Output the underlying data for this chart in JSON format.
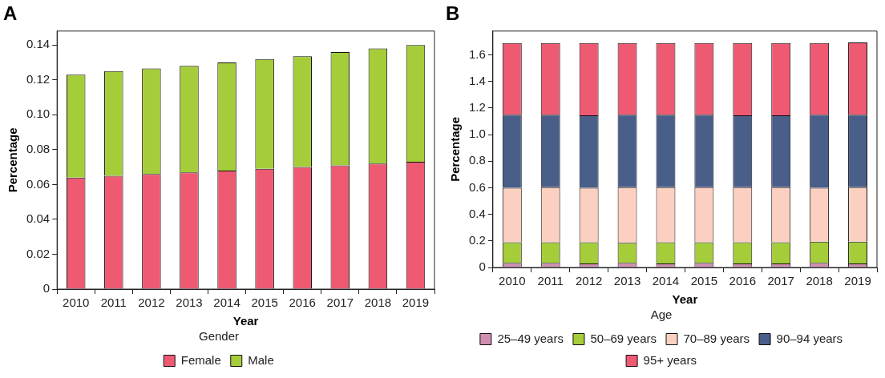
{
  "chart_data": [
    {
      "type": "bar",
      "title": "A",
      "xlabel": "Year",
      "ylabel": "Percentage",
      "legend_title": "Gender",
      "legend": "bottom",
      "stacked": true,
      "grid": false,
      "categories": [
        "2010",
        "2011",
        "2012",
        "2013",
        "2014",
        "2015",
        "2016",
        "2017",
        "2018",
        "2019"
      ],
      "ylim": [
        0,
        0.148
      ],
      "yticks": [
        0,
        0.02,
        {
          "value": 0.04,
          "label": "0.04"
        },
        {
          "value": 0.06,
          "label": "0.06"
        },
        {
          "value": 0.08,
          "label": "0.08"
        },
        {
          "value": 0.1,
          "label": "0.10"
        },
        {
          "value": 0.12,
          "label": "0.12"
        },
        {
          "value": 0.14,
          "label": "0.14"
        }
      ],
      "series": [
        {
          "name": "Female",
          "color": "#ef5a73",
          "values": [
            0.064,
            0.065,
            0.066,
            0.067,
            0.068,
            0.069,
            0.07,
            0.071,
            0.072,
            0.073
          ]
        },
        {
          "name": "Male",
          "color": "#a5cd39",
          "values": [
            0.059,
            0.06,
            0.0605,
            0.061,
            0.062,
            0.063,
            0.0635,
            0.065,
            0.066,
            0.067
          ]
        }
      ]
    },
    {
      "type": "bar",
      "title": "B",
      "xlabel": "Year",
      "ylabel": "Percentage",
      "legend_title": "Age",
      "legend": "bottom",
      "stacked": true,
      "grid": false,
      "categories": [
        "2010",
        "2011",
        "2012",
        "2013",
        "2014",
        "2015",
        "2016",
        "2017",
        "2018",
        "2019"
      ],
      "ylim": [
        0,
        1.78
      ],
      "yticks": [
        0,
        0.2,
        0.4,
        0.6,
        0.8,
        {
          "value": 1,
          "label": "1.0"
        },
        1.2,
        1.4,
        1.6
      ],
      "series": [
        {
          "name": "25–49 years",
          "color": "#cf8fb0",
          "values": [
            0.035,
            0.035,
            0.03,
            0.035,
            0.03,
            0.035,
            0.03,
            0.03,
            0.035,
            0.03
          ]
        },
        {
          "name": "50–69 years",
          "color": "#a5cd39",
          "values": [
            0.155,
            0.155,
            0.16,
            0.15,
            0.16,
            0.155,
            0.16,
            0.16,
            0.16,
            0.165
          ]
        },
        {
          "name": "70–89 years",
          "color": "#fbd0c0",
          "values": [
            0.41,
            0.415,
            0.41,
            0.42,
            0.415,
            0.415,
            0.415,
            0.415,
            0.405,
            0.41
          ]
        },
        {
          "name": "90–94 years",
          "color": "#4a5e8a",
          "values": [
            0.55,
            0.545,
            0.545,
            0.545,
            0.545,
            0.545,
            0.54,
            0.54,
            0.55,
            0.545
          ]
        },
        {
          "name": "95+ years",
          "color": "#ef5a73",
          "values": [
            0.54,
            0.54,
            0.545,
            0.54,
            0.54,
            0.54,
            0.545,
            0.545,
            0.54,
            0.545
          ]
        }
      ]
    }
  ]
}
